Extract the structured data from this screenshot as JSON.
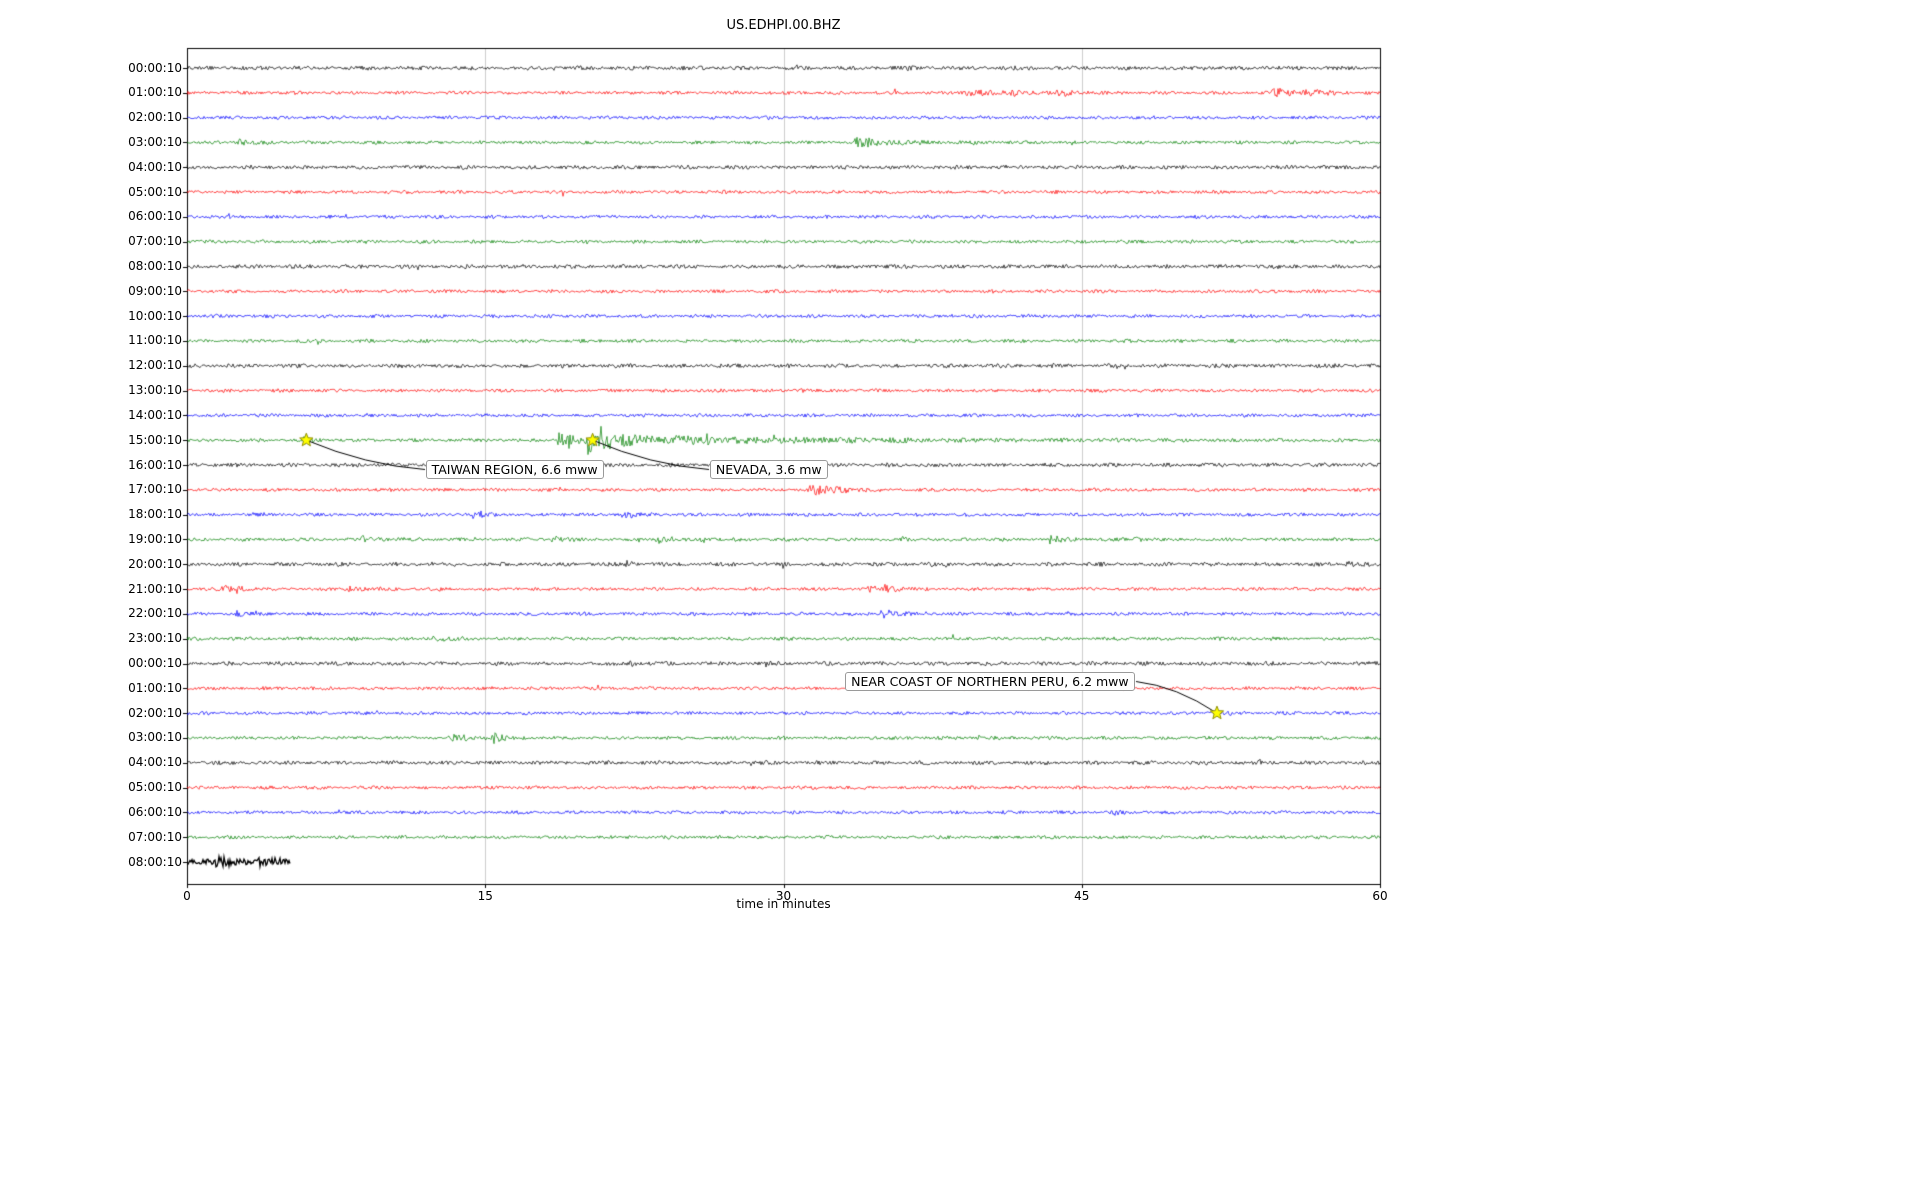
{
  "chart_data": {
    "type": "line",
    "subtype": "seismogram-dayplot",
    "title": "US.EDHPI.00.BHZ",
    "xlabel": "time in minutes",
    "xlim": [
      0,
      60
    ],
    "x_ticks": [
      "0",
      "15",
      "30",
      "45",
      "60"
    ],
    "x_tick_minutes": [
      0,
      15,
      30,
      45,
      60
    ],
    "grid_vertical_minutes": [
      15,
      30,
      45
    ],
    "color_cycle": [
      "#000000",
      "#ff0000",
      "#0000ff",
      "#008000"
    ],
    "grid_color": "#cccccc",
    "star_fill": "#ffff00",
    "star_edge": "#8f8f00",
    "row_labels": [
      "00:00:10",
      "01:00:10",
      "02:00:10",
      "03:00:10",
      "04:00:10",
      "05:00:10",
      "06:00:10",
      "07:00:10",
      "08:00:10",
      "09:00:10",
      "10:00:10",
      "11:00:10",
      "12:00:10",
      "13:00:10",
      "14:00:10",
      "15:00:10",
      "16:00:10",
      "17:00:10",
      "18:00:10",
      "19:00:10",
      "20:00:10",
      "21:00:10",
      "22:00:10",
      "23:00:10",
      "00:00:10",
      "01:00:10",
      "02:00:10",
      "03:00:10",
      "04:00:10",
      "05:00:10",
      "06:00:10",
      "07:00:10",
      "08:00:10"
    ],
    "partial_last_row_end_minute": 5.2,
    "events": [
      {
        "label": "TAIWAN REGION, 6.6 mww",
        "star_minute": 6.0,
        "star_row": 15,
        "box_minute": 12.0,
        "box_row_y": 16.2,
        "anchor": "left"
      },
      {
        "label": "NEVADA, 3.6 mw",
        "star_minute": 20.4,
        "star_row": 15,
        "box_minute": 26.3,
        "box_row_y": 16.2,
        "anchor": "left"
      },
      {
        "label": "NEAR COAST OF NORTHERN PERU, 6.2 mww",
        "star_minute": 51.8,
        "star_row": 26,
        "box_minute": 33.1,
        "box_row_y": 24.74,
        "anchor": "right"
      }
    ],
    "bursts": {
      "1": [
        [
          39.2,
          1.2,
          3.0
        ],
        [
          41.5,
          0.8,
          2.2
        ],
        [
          43.8,
          0.8,
          3.2
        ],
        [
          54.6,
          1.0,
          4.5
        ],
        [
          56.2,
          0.8,
          2.5
        ]
      ],
      "3": [
        [
          2.6,
          0.5,
          3.2
        ],
        [
          33.6,
          1.8,
          4.0
        ]
      ],
      "13": [
        [
          30.5,
          0.6,
          1.8
        ]
      ],
      "15": [
        [
          5.9,
          0.4,
          2.5
        ],
        [
          18.7,
          0.9,
          6.5
        ],
        [
          20.2,
          0.25,
          16
        ],
        [
          20.7,
          0.35,
          20
        ],
        [
          21.2,
          0.2,
          12
        ],
        [
          21.8,
          10.0,
          4.0
        ]
      ],
      "17": [
        [
          31.3,
          0.9,
          6.0
        ],
        [
          32.6,
          0.6,
          3.5
        ]
      ],
      "18": [
        [
          3.0,
          0.4,
          2.0
        ],
        [
          14.4,
          0.5,
          4.5
        ],
        [
          21.9,
          0.7,
          3.2
        ]
      ],
      "19": [
        [
          8.8,
          0.8,
          2.8
        ],
        [
          18.4,
          0.6,
          3.0
        ],
        [
          23.6,
          0.3,
          5.0
        ],
        [
          25.9,
          0.3,
          3.5
        ],
        [
          36.0,
          0.3,
          2.0
        ],
        [
          43.4,
          0.7,
          3.5
        ],
        [
          47.6,
          0.4,
          2.5
        ]
      ],
      "20": [
        [
          22.1,
          0.25,
          4.5
        ],
        [
          58.2,
          0.5,
          2.8
        ]
      ],
      "21": [
        [
          1.8,
          0.6,
          3.0
        ],
        [
          2.5,
          0.3,
          4.5
        ],
        [
          8.1,
          0.8,
          2.6
        ],
        [
          34.3,
          0.5,
          3.0
        ],
        [
          35.0,
          0.6,
          5.0
        ]
      ],
      "22": [
        [
          2.5,
          0.3,
          3.5
        ],
        [
          34.9,
          0.5,
          6.5
        ]
      ],
      "23": [
        [
          12.4,
          0.7,
          2.6
        ]
      ],
      "24": [
        [
          22.2,
          0.3,
          3.0
        ],
        [
          53.6,
          0.8,
          2.0
        ]
      ],
      "26": [
        [
          51.8,
          0.5,
          1.8
        ]
      ],
      "27": [
        [
          13.4,
          1.0,
          3.5
        ],
        [
          15.4,
          0.5,
          4.5
        ]
      ],
      "30": [
        [
          46.6,
          0.4,
          2.0
        ]
      ],
      "32": [
        [
          1.5,
          0.8,
          3.0
        ],
        [
          3.5,
          0.6,
          2.5
        ]
      ]
    }
  }
}
